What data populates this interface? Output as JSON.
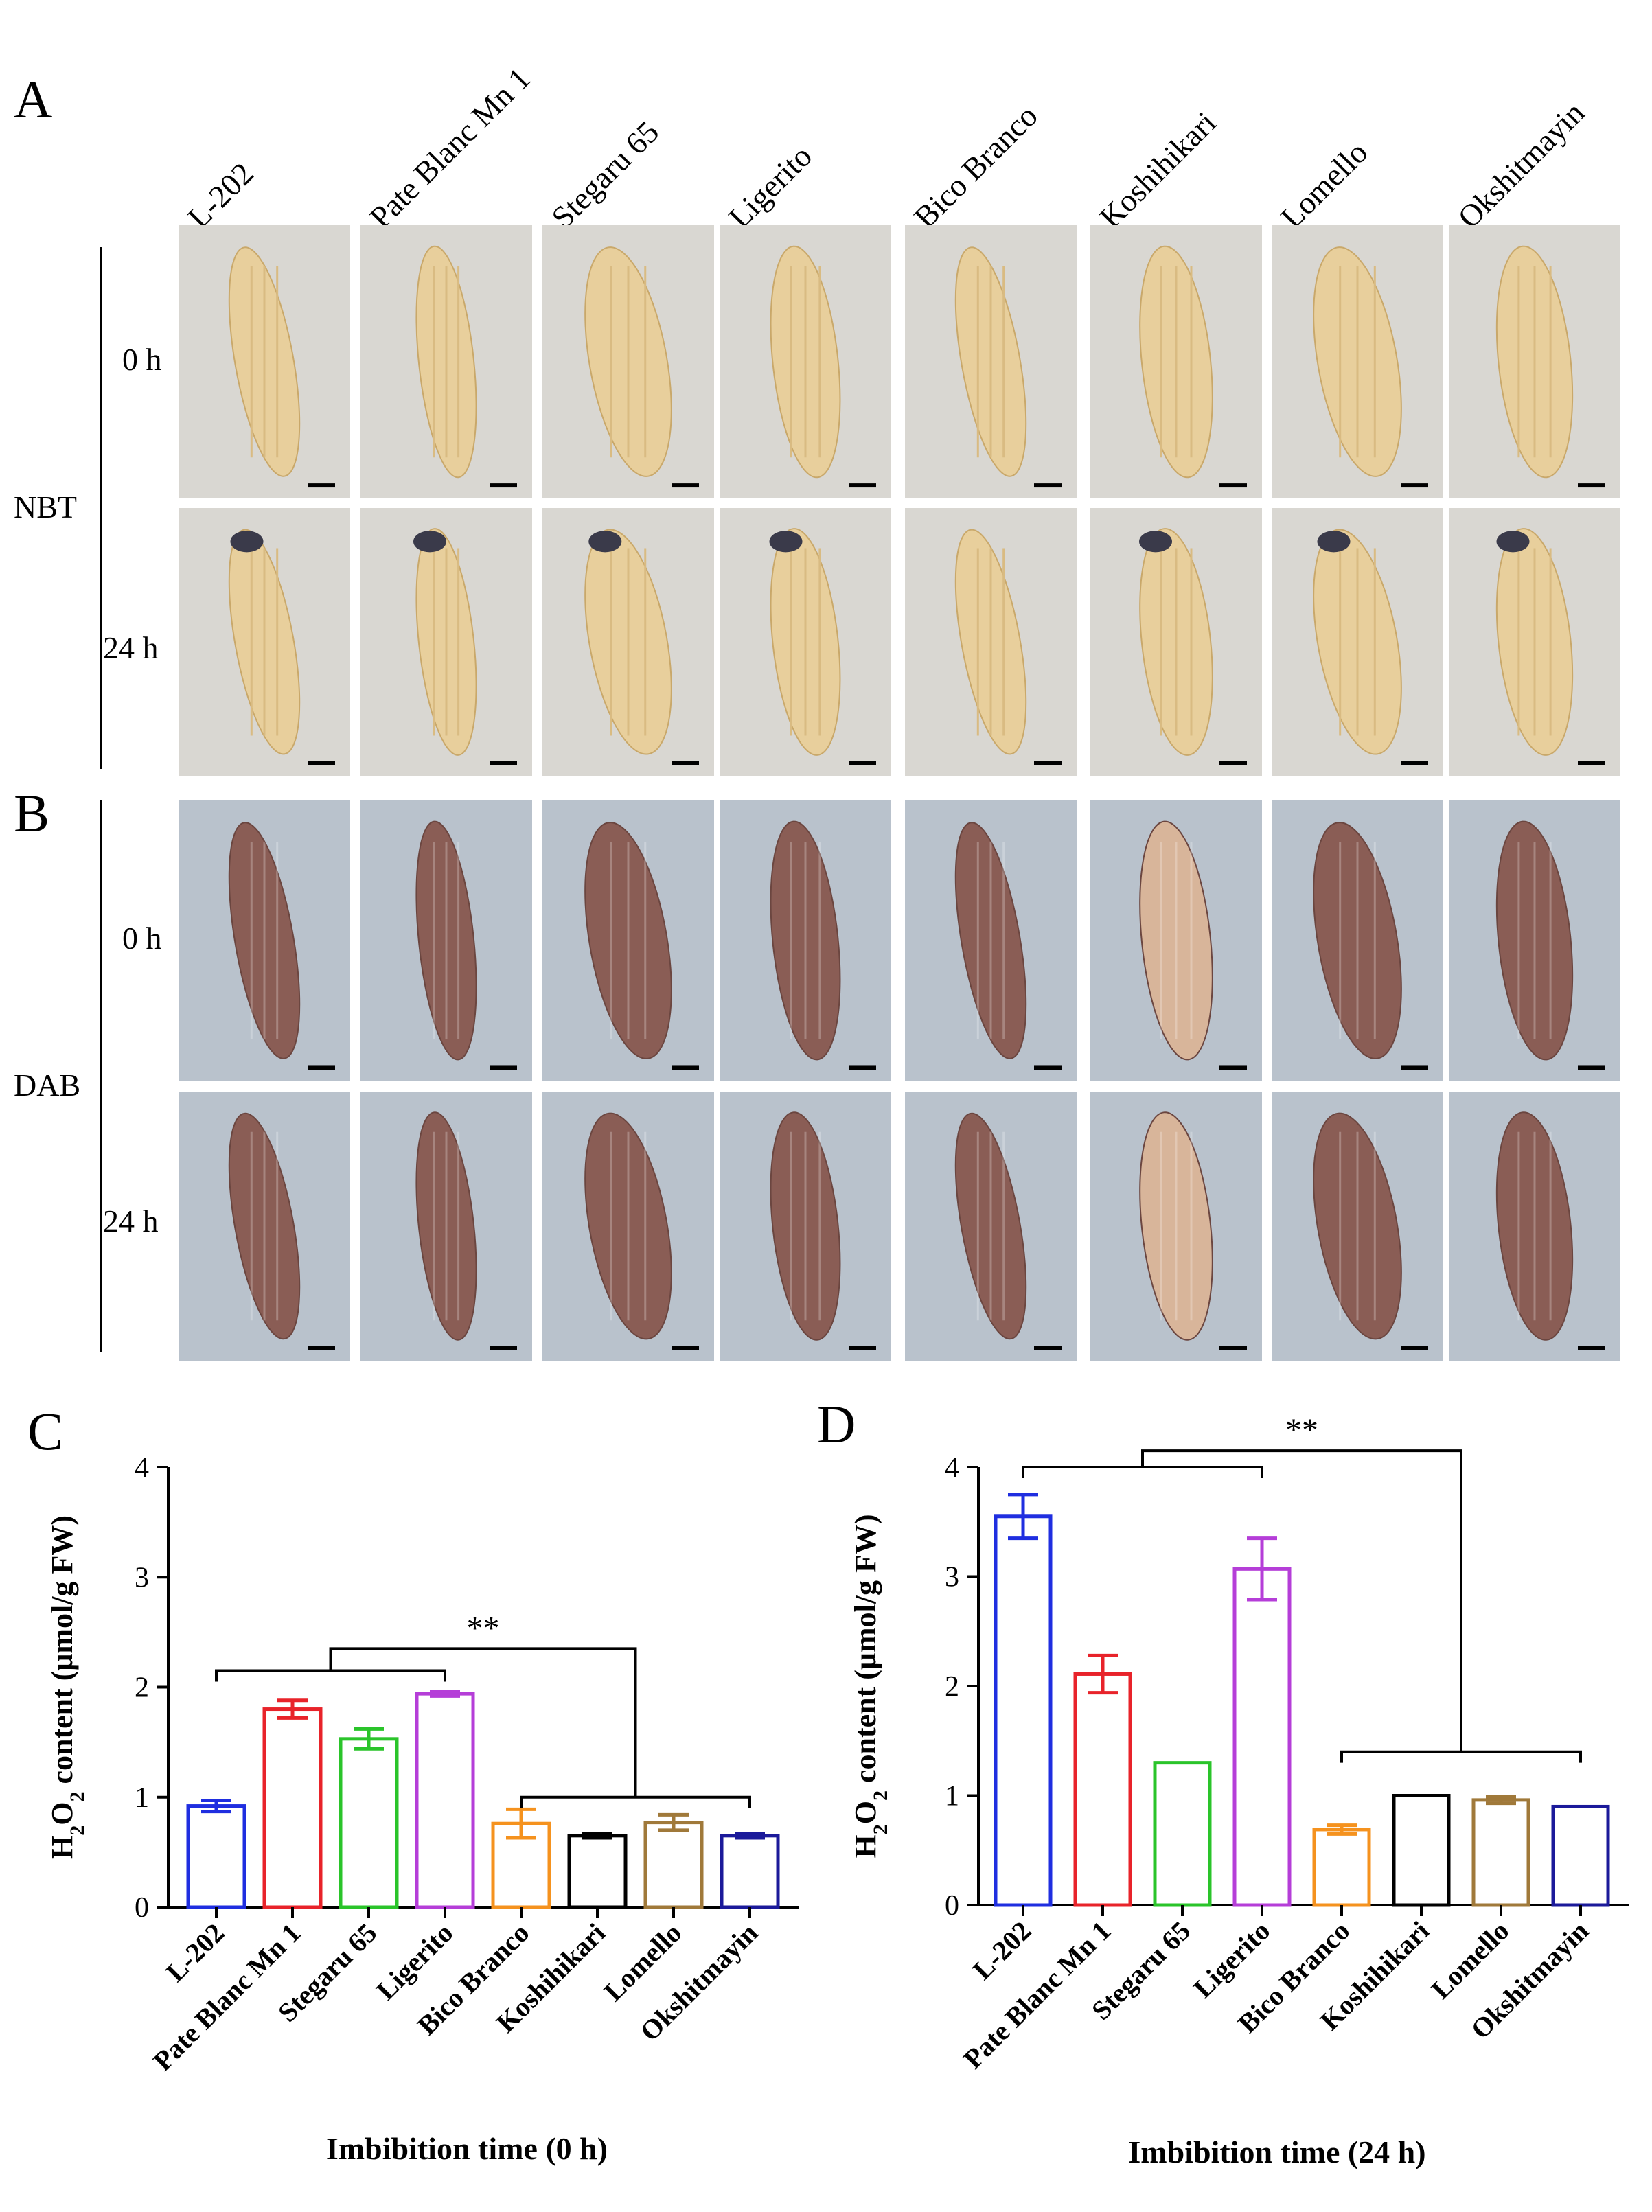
{
  "panels": {
    "A": "A",
    "B": "B",
    "C": "C",
    "D": "D"
  },
  "varieties": [
    "L-202",
    "Pate Blanc Mn 1",
    "Stegaru 65",
    "Ligerito",
    "Bico Branco",
    "Koshihikari",
    "Lomello",
    "Okshitmayin"
  ],
  "photo_panels": {
    "nbt": {
      "group_label": "NBT",
      "rows": [
        "0 h",
        "24 h"
      ]
    },
    "dab": {
      "group_label": "DAB",
      "rows": [
        "0 h",
        "24 h"
      ]
    }
  },
  "colors": {
    "nbt_bg": "#d9d7d2",
    "nbt_seed": "#e8cf9c",
    "nbt_stain": "#3a3a4a",
    "dab_bg": "#b9c2cc",
    "dab_seed_dark": "#8a5d55",
    "dab_seed_light": "#d8b59a",
    "series": [
      "#1f2ee0",
      "#e8232a",
      "#2ac42a",
      "#b53ed8",
      "#f5921e",
      "#000000",
      "#a0793a",
      "#1b1a9a"
    ]
  },
  "chart_data": [
    {
      "type": "bar",
      "panel": "C",
      "categories": [
        "L-202",
        "Pate Blanc Mn 1",
        "Stegaru 65",
        "Ligerito",
        "Bico Branco",
        "Koshihikari",
        "Lomello",
        "Okshitmayin"
      ],
      "values": [
        0.92,
        1.8,
        1.53,
        1.94,
        0.76,
        0.65,
        0.77,
        0.65
      ],
      "errors": [
        0.05,
        0.08,
        0.09,
        0.02,
        0.13,
        0.02,
        0.07,
        0.02
      ],
      "ylabel_parts": [
        "H",
        "2",
        "O",
        "2",
        " content (μmol/g FW)"
      ],
      "xlabel": "Imbibition time (0 h)",
      "ylim": [
        0,
        4
      ],
      "yticks": [
        "0",
        "1",
        "2",
        "3",
        "4"
      ],
      "significance": "**"
    },
    {
      "type": "bar",
      "panel": "D",
      "categories": [
        "L-202",
        "Pate Blanc Mn 1",
        "Stegaru 65",
        "Ligerito",
        "Bico Branco",
        "Koshihikari",
        "Lomello",
        "Okshitmayin"
      ],
      "values": [
        3.55,
        2.11,
        1.3,
        3.07,
        0.69,
        1.0,
        0.96,
        0.9
      ],
      "errors": [
        0.2,
        0.17,
        0.0,
        0.28,
        0.04,
        0.0,
        0.03,
        0.0
      ],
      "ylabel_parts": [
        "H",
        "2",
        "O",
        "2",
        " content (μmol/g FW)"
      ],
      "xlabel": "Imbibition time (24 h)",
      "ylim": [
        0,
        4
      ],
      "yticks": [
        "0",
        "1",
        "2",
        "3",
        "4"
      ],
      "significance": "**"
    }
  ]
}
